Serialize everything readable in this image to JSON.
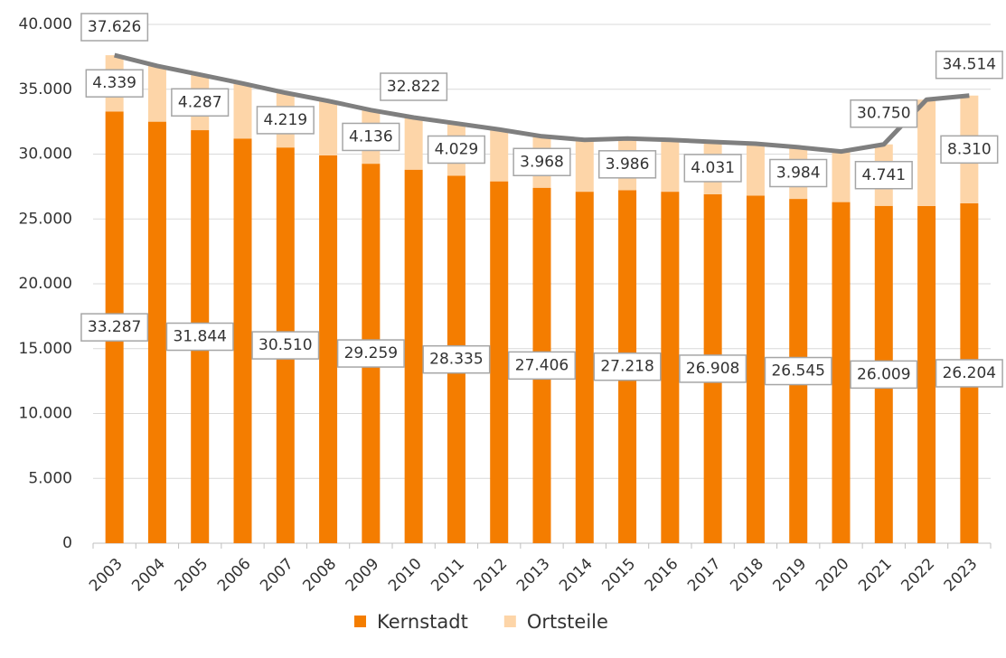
{
  "chart_data": {
    "type": "bar",
    "stacked": true,
    "categories": [
      "2003",
      "2004",
      "2005",
      "2006",
      "2007",
      "2008",
      "2009",
      "2010",
      "2011",
      "2012",
      "2013",
      "2014",
      "2015",
      "2016",
      "2017",
      "2018",
      "2019",
      "2020",
      "2021",
      "2022",
      "2023"
    ],
    "series": [
      {
        "name": "Kernstadt",
        "color": "#f47d00",
        "values": [
          33287,
          32500,
          31844,
          31200,
          30510,
          29900,
          29259,
          28800,
          28335,
          27900,
          27406,
          27100,
          27218,
          27100,
          26908,
          26800,
          26545,
          26300,
          26009,
          26000,
          26204
        ],
        "value_labels": [
          "33.287",
          null,
          "31.844",
          null,
          "30.510",
          null,
          "29.259",
          null,
          "28.335",
          null,
          "27.406",
          null,
          "27.218",
          null,
          "26.908",
          null,
          "26.545",
          null,
          "26.009",
          null,
          "26.204"
        ]
      },
      {
        "name": "Ortsteile",
        "color": "#fdd5a8",
        "values": [
          4339,
          4300,
          4287,
          4250,
          4219,
          4200,
          4136,
          4022,
          4029,
          4000,
          3968,
          4000,
          3986,
          4000,
          4031,
          4000,
          3984,
          3900,
          4741,
          8200,
          8310
        ],
        "value_labels": [
          "4.339",
          null,
          "4.287",
          null,
          "4.219",
          null,
          "4.136",
          null,
          "4.029",
          null,
          "3.968",
          null,
          "3.986",
          null,
          "4.031",
          null,
          "3.984",
          null,
          "4.741",
          null,
          "8.310"
        ]
      }
    ],
    "line": {
      "type": "line",
      "color": "#7f7f7f",
      "values": [
        37626,
        36800,
        36131,
        35450,
        34729,
        34100,
        33395,
        32822,
        32364,
        31900,
        31374,
        31100,
        31204,
        31100,
        30939,
        30800,
        30529,
        30200,
        30750,
        34200,
        34514
      ],
      "value_labels": [
        "37.626",
        null,
        null,
        null,
        null,
        null,
        null,
        "32.822",
        null,
        null,
        null,
        null,
        null,
        null,
        null,
        null,
        null,
        null,
        "30.750",
        null,
        "34.514"
      ]
    },
    "ylim": [
      0,
      40000
    ],
    "yticks": [
      0,
      {
        "value": 5000,
        "label": "5.000"
      },
      {
        "value": 10000,
        "label": "10.000"
      },
      {
        "value": 15000,
        "label": "15.000"
      },
      {
        "value": 20000,
        "label": "20.000"
      },
      {
        "value": 25000,
        "label": "25.000"
      },
      {
        "value": 30000,
        "label": "30.000"
      },
      {
        "value": 35000,
        "label": "35.000"
      },
      {
        "value": 40000,
        "label": "40.000"
      }
    ],
    "grid": true,
    "legend": "bottom"
  }
}
